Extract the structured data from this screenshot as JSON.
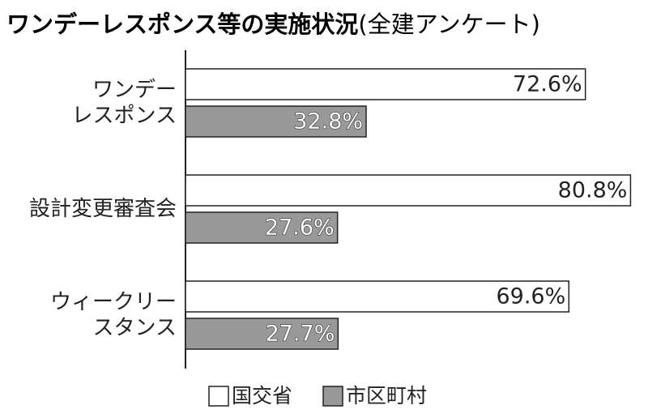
{
  "chart_data": {
    "type": "hbar",
    "title": "ワンデーレスポンス等の実施状況",
    "subtitle": "(全建アンケート)",
    "categories": [
      "ワンデー\nレスポンス",
      "設計変更審査会",
      "ウィークリー\nスタンス"
    ],
    "series": [
      {
        "name": "国交省",
        "color": "#ffffff",
        "values": [
          72.6,
          80.8,
          69.6
        ],
        "value_labels": [
          "72.6%",
          "80.8%",
          "69.6%"
        ]
      },
      {
        "name": "市区町村",
        "color": "#999999",
        "values": [
          32.8,
          27.6,
          27.7
        ],
        "value_labels": [
          "32.8%",
          "27.6%",
          "27.7%"
        ]
      }
    ]
  }
}
